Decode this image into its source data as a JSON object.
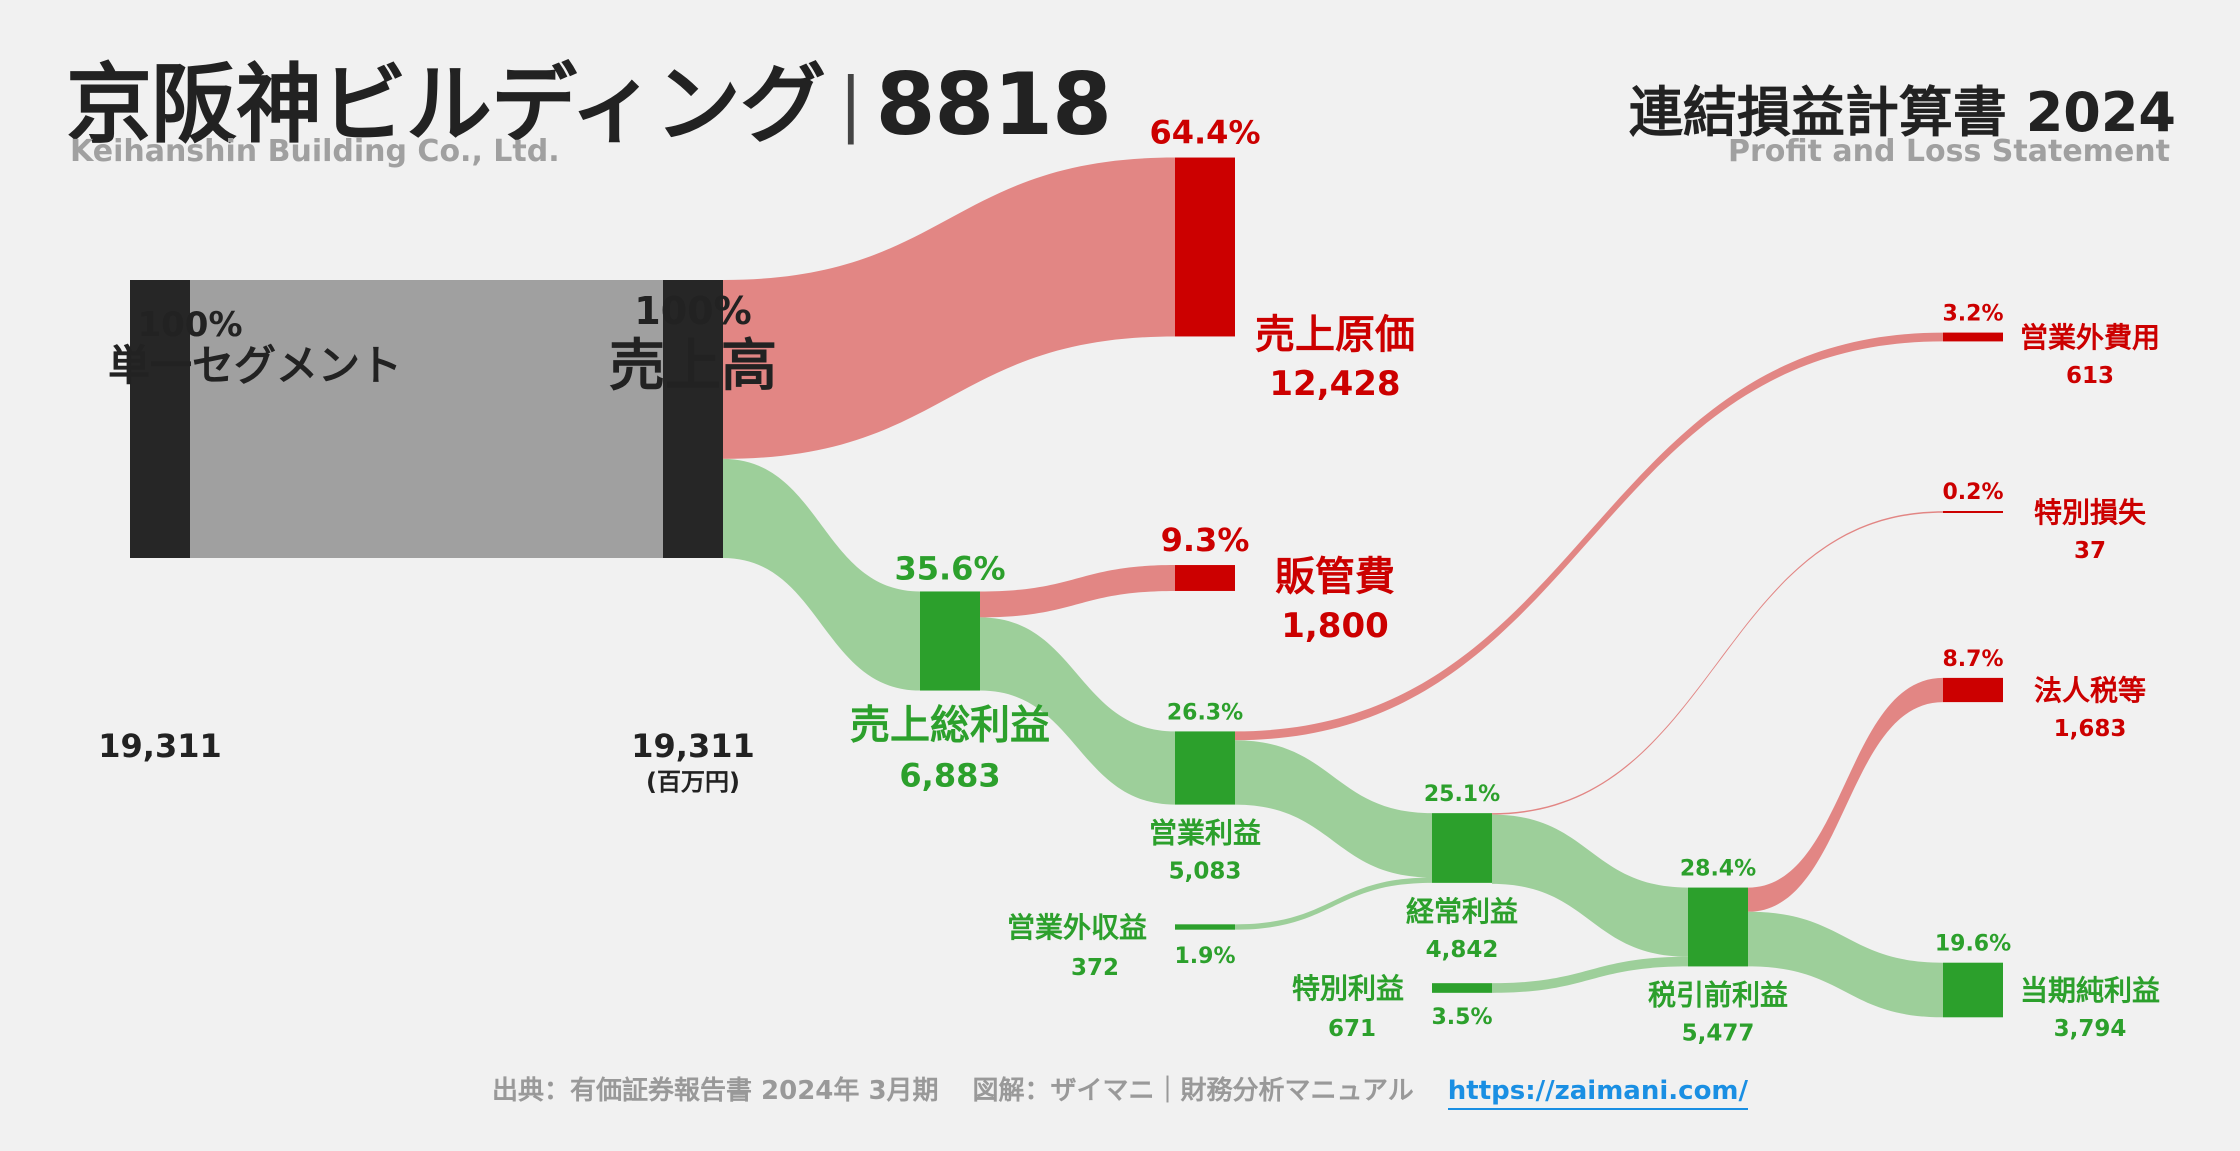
{
  "header": {
    "company": "京阪神ビルディング",
    "separator": "|",
    "code": "8818",
    "company_en": "Keihanshin Building Co., Ltd.",
    "statement": "連結損益計算書 2024",
    "statement_en": "Profit and Loss Statement"
  },
  "footer": {
    "source": "出典：有価証券報告書 2024年 3月期",
    "credit": "図解：ザイマニ｜財務分析マニュアル",
    "url": "https://zaimani.com/"
  },
  "colors": {
    "dark": "#262626",
    "gray_flow": "#a0a0a0",
    "red": "#cc0000",
    "red_flow": "#e28684",
    "green": "#2ca02c",
    "green_flow": "#9dcf9a"
  },
  "chart_data": {
    "type": "sankey",
    "unit": "(百万円)",
    "nodes": [
      {
        "id": "segment",
        "label": "単一セグメント",
        "value": 19311,
        "value_text": "19,311",
        "pct": "100%",
        "kind": "dark"
      },
      {
        "id": "revenue",
        "label": "売上高",
        "value": 19311,
        "value_text": "19,311",
        "pct": "100%",
        "kind": "dark"
      },
      {
        "id": "cogs",
        "label": "売上原価",
        "value": 12428,
        "value_text": "12,428",
        "pct": "64.4%",
        "kind": "red"
      },
      {
        "id": "gross",
        "label": "売上総利益",
        "value": 6883,
        "value_text": "6,883",
        "pct": "35.6%",
        "kind": "green"
      },
      {
        "id": "sga",
        "label": "販管費",
        "value": 1800,
        "value_text": "1,800",
        "pct": "9.3%",
        "kind": "red"
      },
      {
        "id": "operating",
        "label": "営業利益",
        "value": 5083,
        "value_text": "5,083",
        "pct": "26.3%",
        "kind": "green"
      },
      {
        "id": "nonop_inc",
        "label": "営業外収益",
        "value": 372,
        "value_text": "372",
        "pct": "1.9%",
        "kind": "green"
      },
      {
        "id": "nonop_exp",
        "label": "営業外費用",
        "value": 613,
        "value_text": "613",
        "pct": "3.2%",
        "kind": "red"
      },
      {
        "id": "ordinary",
        "label": "経常利益",
        "value": 4842,
        "value_text": "4,842",
        "pct": "25.1%",
        "kind": "green"
      },
      {
        "id": "extra_inc",
        "label": "特別利益",
        "value": 671,
        "value_text": "671",
        "pct": "3.5%",
        "kind": "green"
      },
      {
        "id": "extra_loss",
        "label": "特別損失",
        "value": 37,
        "value_text": "37",
        "pct": "0.2%",
        "kind": "red"
      },
      {
        "id": "pretax",
        "label": "税引前利益",
        "value": 5477,
        "value_text": "5,477",
        "pct": "28.4%",
        "kind": "green"
      },
      {
        "id": "tax",
        "label": "法人税等",
        "value": 1683,
        "value_text": "1,683",
        "pct": "8.7%",
        "kind": "red"
      },
      {
        "id": "net",
        "label": "当期純利益",
        "value": 3794,
        "value_text": "3,794",
        "pct": "19.6%",
        "kind": "green"
      }
    ],
    "links": [
      {
        "source": "segment",
        "target": "revenue",
        "value": 19311
      },
      {
        "source": "revenue",
        "target": "cogs",
        "value": 12428
      },
      {
        "source": "revenue",
        "target": "gross",
        "value": 6883
      },
      {
        "source": "gross",
        "target": "sga",
        "value": 1800
      },
      {
        "source": "gross",
        "target": "operating",
        "value": 5083
      },
      {
        "source": "operating",
        "target": "nonop_exp",
        "value": 613
      },
      {
        "source": "operating",
        "target": "ordinary",
        "value": 4470
      },
      {
        "source": "nonop_inc",
        "target": "ordinary",
        "value": 372
      },
      {
        "source": "ordinary",
        "target": "extra_loss",
        "value": 37
      },
      {
        "source": "ordinary",
        "target": "pretax",
        "value": 4806
      },
      {
        "source": "extra_inc",
        "target": "pretax",
        "value": 671
      },
      {
        "source": "pretax",
        "target": "tax",
        "value": 1683
      },
      {
        "source": "pretax",
        "target": "net",
        "value": 3794
      }
    ]
  }
}
